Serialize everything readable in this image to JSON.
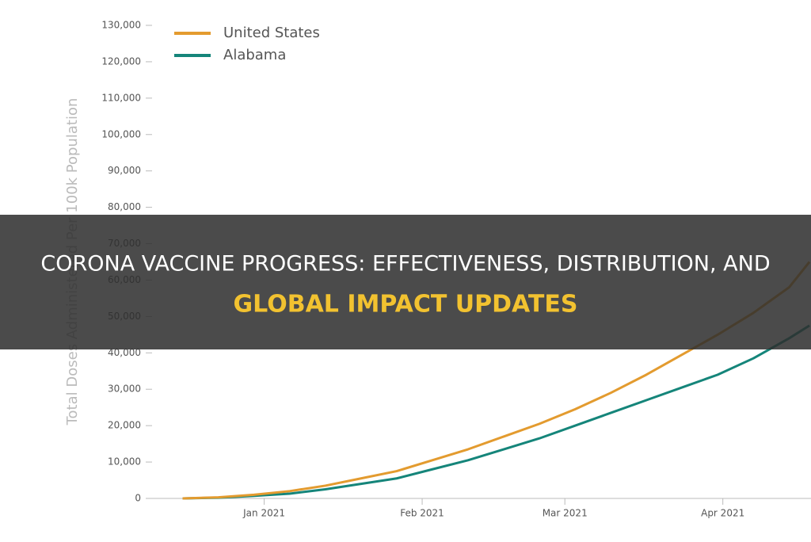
{
  "chart_data": {
    "type": "line",
    "y_label": "Total Doses Administered Per 100k Population",
    "x": [
      -16,
      -9,
      -2,
      5,
      12,
      19,
      26,
      33,
      40,
      47,
      54,
      61,
      68,
      75,
      82,
      89,
      96,
      103,
      107
    ],
    "series": [
      {
        "name": "United States",
        "color": "#e39b2f",
        "values": [
          0,
          300,
          1000,
          2000,
          3500,
          5500,
          7500,
          10500,
          13500,
          17000,
          20500,
          24500,
          29000,
          34000,
          39500,
          45000,
          51000,
          58000,
          65000
        ]
      },
      {
        "name": "Alabama",
        "color": "#15857a",
        "values": [
          0,
          200,
          700,
          1300,
          2500,
          4000,
          5500,
          8000,
          10500,
          13500,
          16500,
          20000,
          23500,
          27000,
          30500,
          34000,
          38500,
          44000,
          47500
        ]
      }
    ],
    "xlim": [
      -22,
      107.3
    ],
    "xticks": [
      {
        "value": 0,
        "label": "Jan 2021"
      },
      {
        "value": 31,
        "label": "Feb 2021"
      },
      {
        "value": 59,
        "label": "Mar 2021"
      },
      {
        "value": 90,
        "label": "Apr 2021"
      }
    ],
    "ylim": [
      0,
      130000
    ],
    "yticks": [
      0,
      {
        "value": 10000,
        "label": "10,000"
      },
      {
        "value": 20000,
        "label": "20,000"
      },
      {
        "value": 30000,
        "label": "30,000"
      },
      {
        "value": 40000,
        "label": "40,000"
      },
      {
        "value": 50000,
        "label": "50,000"
      },
      {
        "value": 60000,
        "label": "60,000"
      },
      {
        "value": 70000,
        "label": "70,000"
      },
      {
        "value": 80000,
        "label": "80,000"
      },
      {
        "value": 90000,
        "label": "90,000"
      },
      {
        "value": 100000,
        "label": "100,000"
      },
      {
        "value": 110000,
        "label": "110,000"
      },
      {
        "value": 120000,
        "label": "120,000"
      },
      {
        "value": 130000,
        "label": "130,000"
      }
    ],
    "legend": "top-left"
  },
  "banner": {
    "line1": "CORONA VACCINE PROGRESS: EFFECTIVENESS, DISTRIBUTION, AND",
    "line2": "GLOBAL IMPACT UPDATES"
  }
}
